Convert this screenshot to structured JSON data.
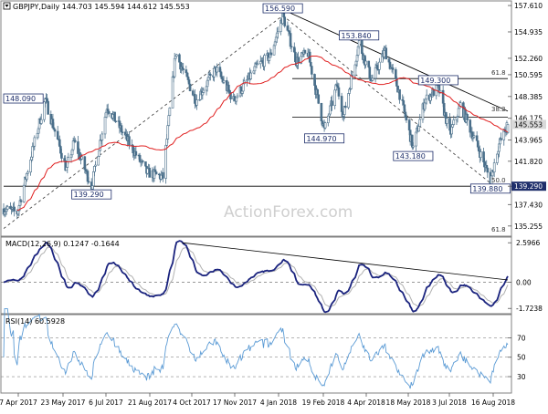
{
  "chart_data": [
    {
      "type": "candlestick",
      "title": "GBPJPY,Daily  144.703 145.594 144.612 145.553",
      "symbol": "GBPJPY",
      "timeframe": "Daily",
      "ohlc_last": {
        "open": 144.703,
        "high": 145.594,
        "low": 144.612,
        "close": 145.553
      },
      "ylim": [
        134.5,
        157.8
      ],
      "y_ticks": [
        "157.610",
        "154.935",
        "152.260",
        "150.595",
        "148.385",
        "146.175",
        "143.965",
        "141.820",
        "139.290",
        "137.430",
        "135.255"
      ],
      "y_tick_values": [
        157.61,
        154.935,
        152.26,
        150.595,
        148.385,
        146.175,
        143.965,
        141.82,
        139.29,
        137.43,
        135.255
      ],
      "price_tag": {
        "label": "145.553",
        "value": 145.553,
        "color": "#d9d9d9"
      },
      "support_tag": {
        "label": "139.290",
        "value": 139.29,
        "color": "#1f2f6b"
      },
      "x_tick_labels": [
        "7 Apr 2017",
        "23 May 2017",
        "6 Jul 2017",
        "21 Aug 2017",
        "4 Oct 2017",
        "17 Nov 2017",
        "4 Jan 2018",
        "19 Feb 2018",
        "4 Apr 2018",
        "18 May 2018",
        "3 Jul 2018",
        "16 Aug 2018"
      ],
      "annotations": [
        {
          "text": "148.090",
          "date": "2017-05-09",
          "price": 148.09
        },
        {
          "text": "139.290",
          "date": "2017-06-26",
          "price": 139.29
        },
        {
          "text": "156.590",
          "date": "2018-01-10",
          "price": 156.59
        },
        {
          "text": "144.970",
          "date": "2018-02-22",
          "price": 144.97
        },
        {
          "text": "153.840",
          "date": "2018-03-30",
          "price": 153.84
        },
        {
          "text": "143.180",
          "date": "2018-05-25",
          "price": 143.18
        },
        {
          "text": "149.300",
          "date": "2018-06-20",
          "price": 149.3
        },
        {
          "text": "139.880",
          "date": "2018-08-13",
          "price": 139.88
        }
      ],
      "fib_labels": [
        "61.8",
        "38.2",
        "50.0",
        "61.8"
      ],
      "legend": "none",
      "grid": false,
      "colors": {
        "candles": "#4a6f8a",
        "ma": "#e02020",
        "hline": "#000000",
        "trend": "#000000"
      }
    },
    {
      "type": "line",
      "title": "MACD(12,26,9) 0.1247 -0.1644",
      "ylim": [
        -1.95,
        2.85
      ],
      "y_ticks": [
        "2.5966",
        "0.00",
        "-1.7238"
      ],
      "series": [
        {
          "name": "MACD",
          "color": "#1a237e"
        },
        {
          "name": "Signal",
          "color": "#b0b0b0"
        }
      ]
    },
    {
      "type": "line",
      "title": "RSI(14) 60.5928",
      "ylim": [
        15,
        92
      ],
      "y_ticks": [
        "70",
        "50",
        "30"
      ],
      "series": [
        {
          "name": "RSI",
          "color": "#5b9bd5"
        }
      ]
    }
  ],
  "watermark": "ActionForex.com"
}
